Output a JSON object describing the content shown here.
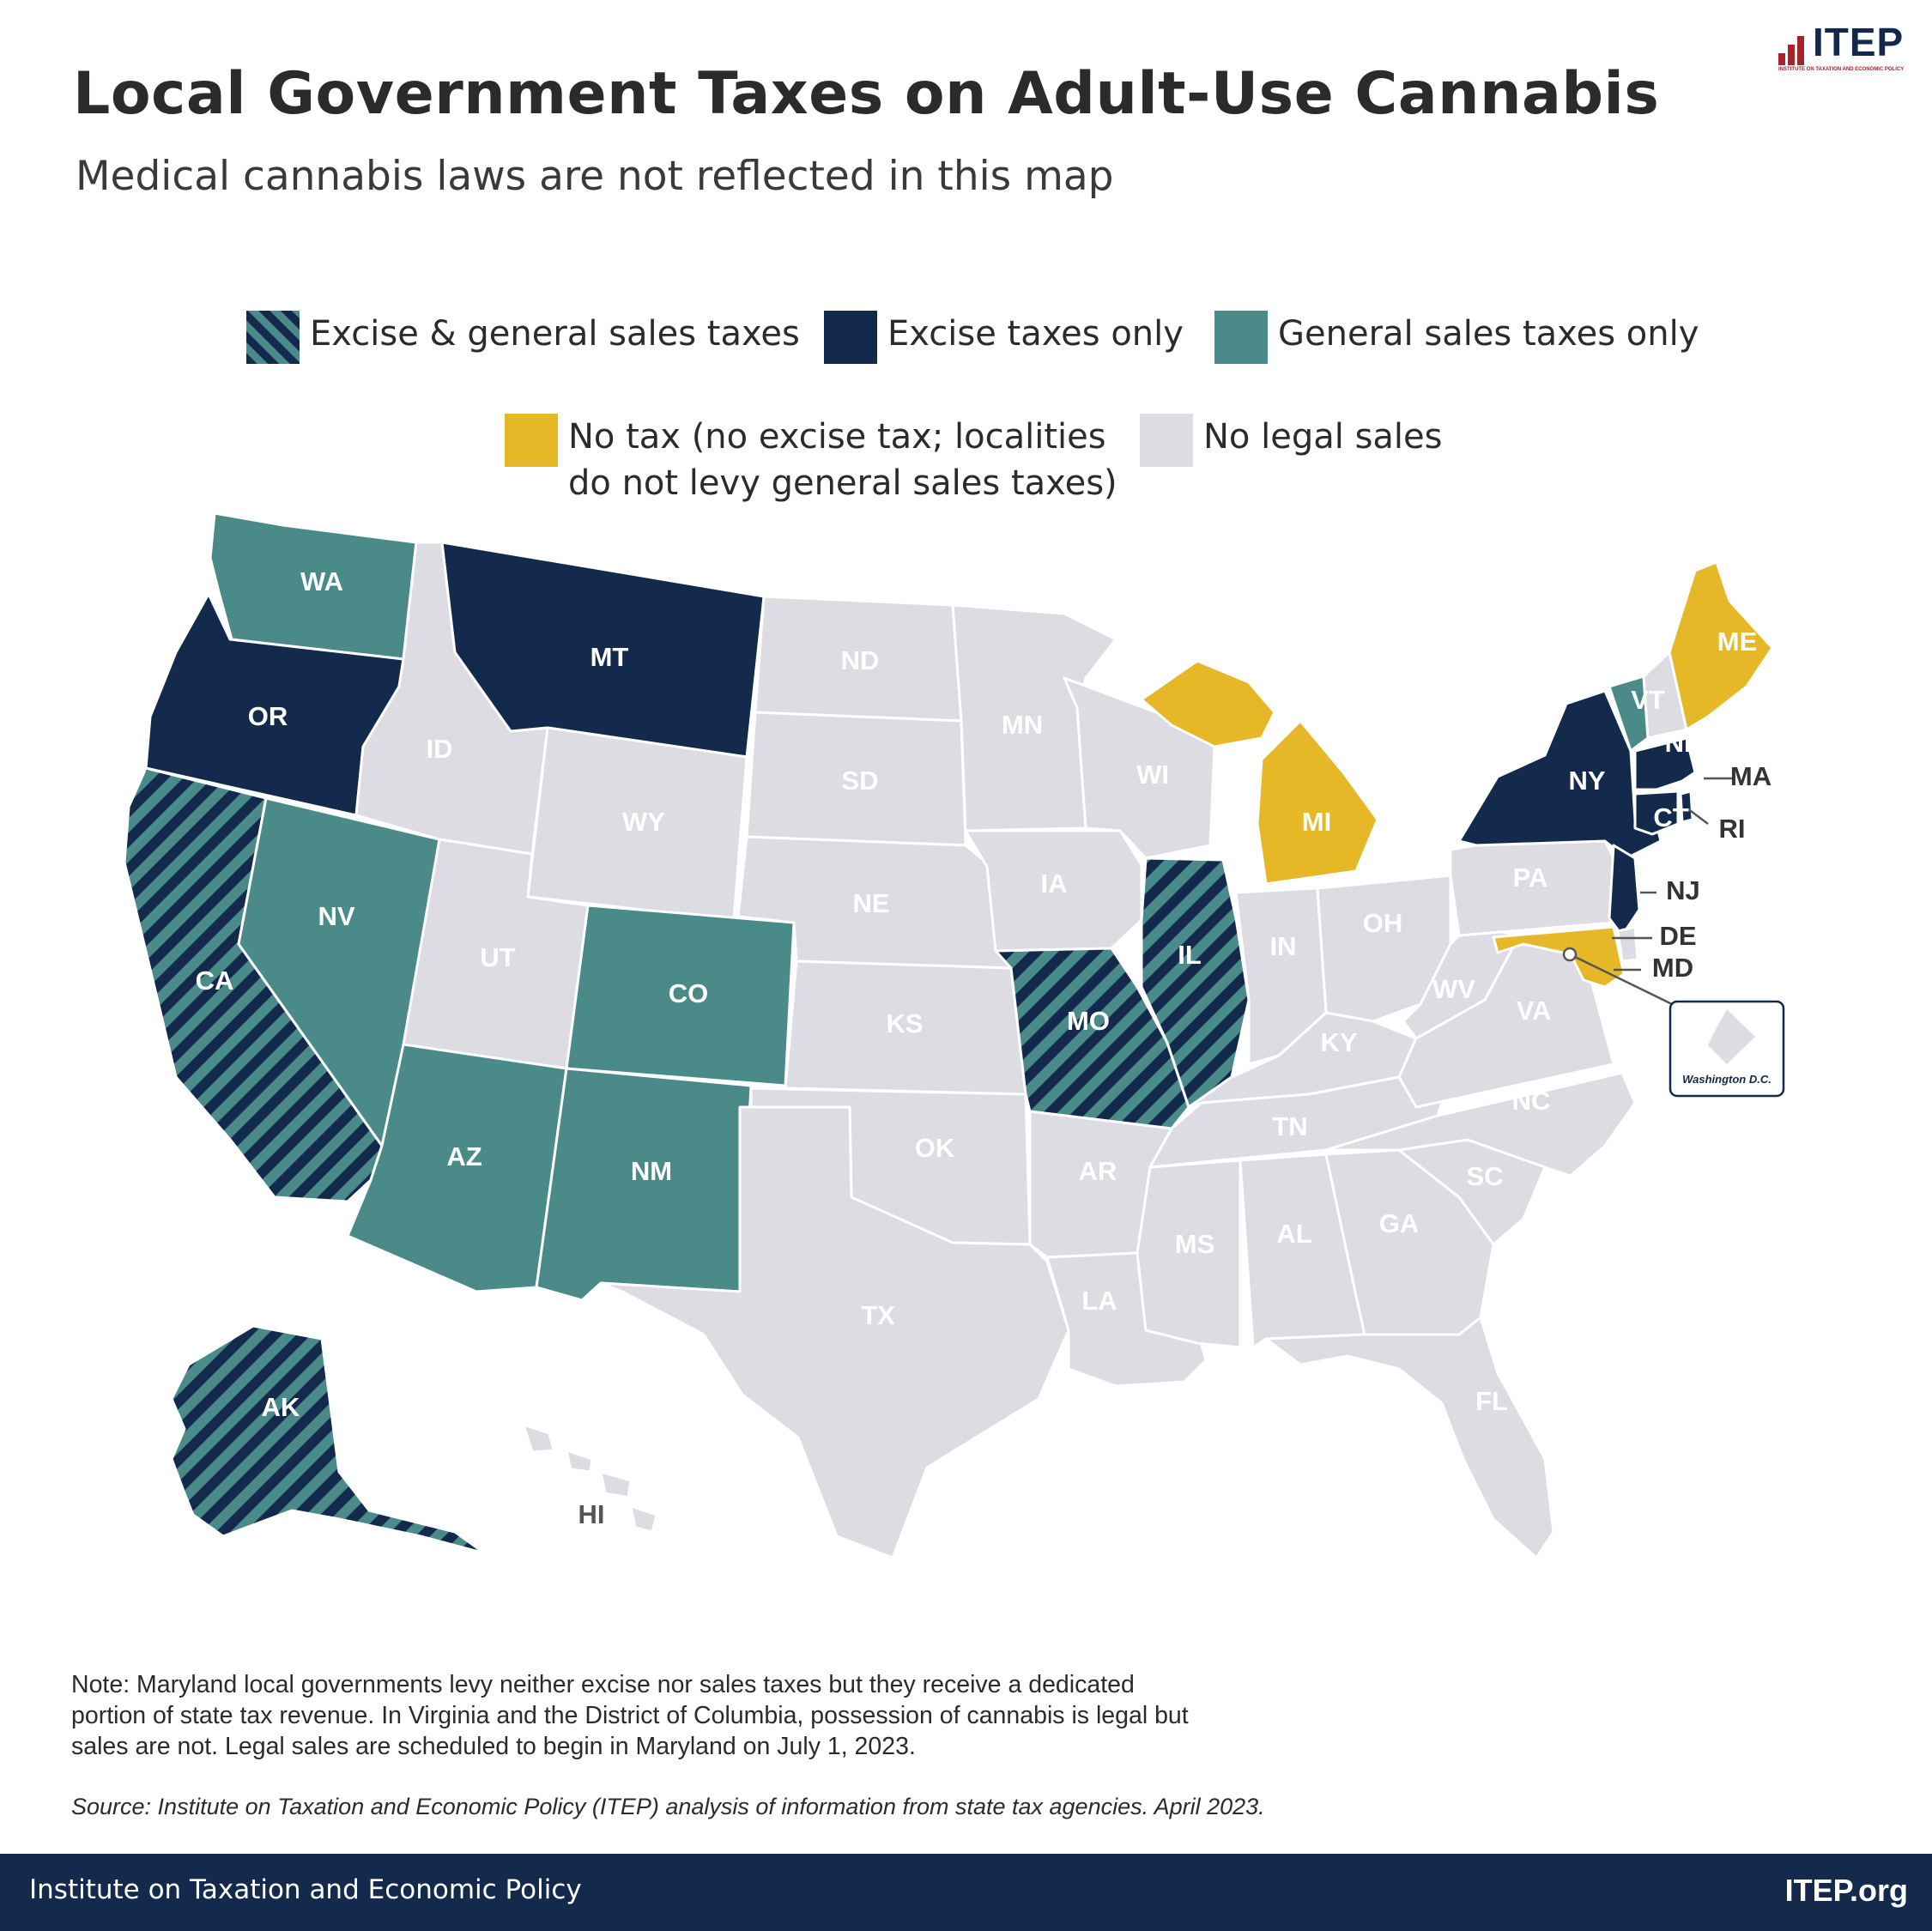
{
  "title": "Local Government Taxes on Adult-Use Cannabis",
  "subtitle": "Medical cannabis laws are not reflected in this map",
  "logo": {
    "text": "ITEP",
    "subtitle": "INSTITUTE ON TAXATION AND ECONOMIC POLICY"
  },
  "colors": {
    "excise_only": "#132a4d",
    "sales_only": "#4a8b8a",
    "no_tax": "#e6b828",
    "no_legal": "#dcdce2",
    "excise_and_sales_a": "#132a4d",
    "excise_and_sales_b": "#4a8b8a"
  },
  "legend": [
    {
      "key": "excise_and_sales",
      "label": "Excise & general sales taxes"
    },
    {
      "key": "excise_only",
      "label": "Excise taxes only"
    },
    {
      "key": "sales_only",
      "label": "General sales taxes only"
    },
    {
      "key": "no_tax",
      "label_line1": "No tax (no excise tax; localities",
      "label_line2": "do not levy general sales taxes)"
    },
    {
      "key": "no_legal",
      "label": "No legal sales"
    }
  ],
  "map": {
    "states": [
      {
        "abbr": "WA",
        "category": "sales_only"
      },
      {
        "abbr": "OR",
        "category": "excise_only"
      },
      {
        "abbr": "CA",
        "category": "excise_and_sales"
      },
      {
        "abbr": "NV",
        "category": "sales_only"
      },
      {
        "abbr": "ID",
        "category": "no_legal"
      },
      {
        "abbr": "MT",
        "category": "excise_only"
      },
      {
        "abbr": "WY",
        "category": "no_legal"
      },
      {
        "abbr": "UT",
        "category": "no_legal"
      },
      {
        "abbr": "AZ",
        "category": "sales_only"
      },
      {
        "abbr": "CO",
        "category": "sales_only"
      },
      {
        "abbr": "NM",
        "category": "sales_only"
      },
      {
        "abbr": "ND",
        "category": "no_legal"
      },
      {
        "abbr": "SD",
        "category": "no_legal"
      },
      {
        "abbr": "NE",
        "category": "no_legal"
      },
      {
        "abbr": "KS",
        "category": "no_legal"
      },
      {
        "abbr": "OK",
        "category": "no_legal"
      },
      {
        "abbr": "TX",
        "category": "no_legal"
      },
      {
        "abbr": "MN",
        "category": "no_legal"
      },
      {
        "abbr": "IA",
        "category": "no_legal"
      },
      {
        "abbr": "MO",
        "category": "excise_and_sales"
      },
      {
        "abbr": "AR",
        "category": "no_legal"
      },
      {
        "abbr": "LA",
        "category": "no_legal"
      },
      {
        "abbr": "WI",
        "category": "no_legal"
      },
      {
        "abbr": "IL",
        "category": "excise_and_sales"
      },
      {
        "abbr": "MI",
        "category": "no_tax"
      },
      {
        "abbr": "IN",
        "category": "no_legal"
      },
      {
        "abbr": "OH",
        "category": "no_legal"
      },
      {
        "abbr": "KY",
        "category": "no_legal"
      },
      {
        "abbr": "TN",
        "category": "no_legal"
      },
      {
        "abbr": "MS",
        "category": "no_legal"
      },
      {
        "abbr": "AL",
        "category": "no_legal"
      },
      {
        "abbr": "GA",
        "category": "no_legal"
      },
      {
        "abbr": "FL",
        "category": "no_legal"
      },
      {
        "abbr": "SC",
        "category": "no_legal"
      },
      {
        "abbr": "NC",
        "category": "no_legal"
      },
      {
        "abbr": "VA",
        "category": "no_legal"
      },
      {
        "abbr": "WV",
        "category": "no_legal"
      },
      {
        "abbr": "PA",
        "category": "no_legal"
      },
      {
        "abbr": "NY",
        "category": "excise_only"
      },
      {
        "abbr": "VT",
        "category": "sales_only"
      },
      {
        "abbr": "NH",
        "category": "no_legal"
      },
      {
        "abbr": "ME",
        "category": "no_tax"
      },
      {
        "abbr": "MA",
        "category": "excise_only"
      },
      {
        "abbr": "CT",
        "category": "excise_only"
      },
      {
        "abbr": "RI",
        "category": "excise_only"
      },
      {
        "abbr": "NJ",
        "category": "excise_only"
      },
      {
        "abbr": "DE",
        "category": "no_legal"
      },
      {
        "abbr": "MD",
        "category": "no_tax"
      },
      {
        "abbr": "AK",
        "category": "excise_and_sales"
      },
      {
        "abbr": "HI",
        "category": "no_legal"
      }
    ],
    "dc_label": "Washington D.C."
  },
  "note": "Note: Maryland local governments levy neither excise nor sales taxes but they receive a dedicated portion of state tax revenue. In Virginia and the District of Columbia, possession of cannabis is legal but sales are not. Legal sales are scheduled to begin in Maryland on July 1, 2023.",
  "source": "Source: Institute on Taxation and Economic Policy (ITEP) analysis of information from state tax agencies. April 2023.",
  "footer": {
    "left": "Institute on Taxation and Economic Policy",
    "right": "ITEP.org"
  }
}
